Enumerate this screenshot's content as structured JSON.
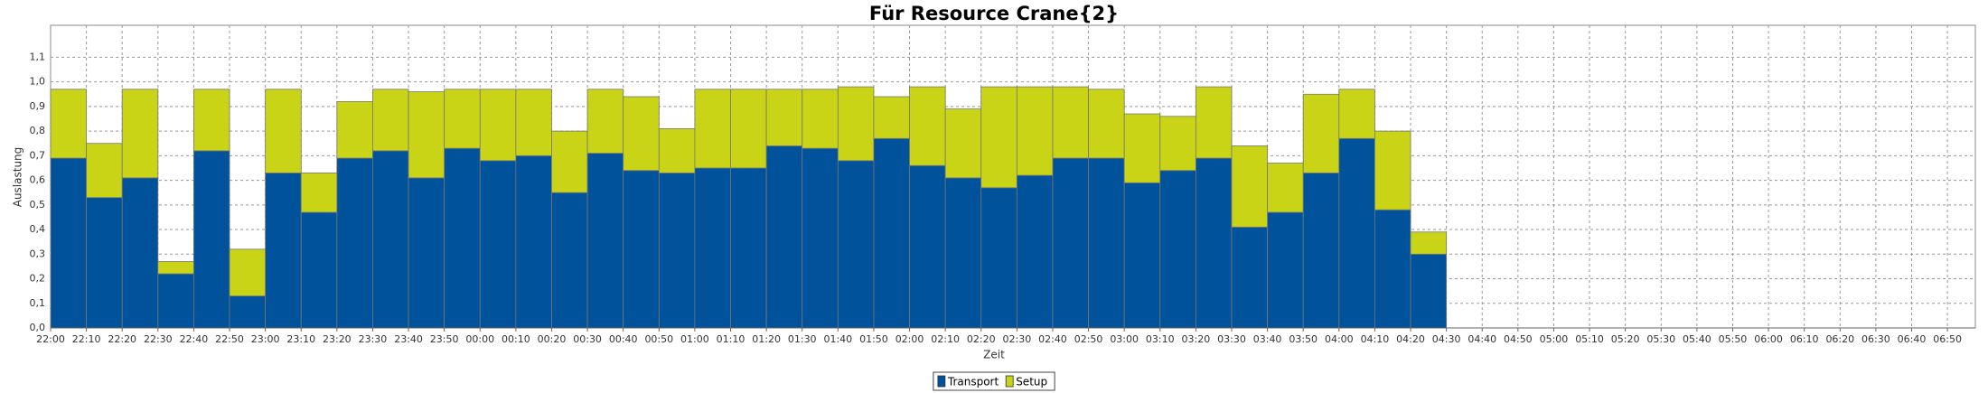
{
  "chart_data": {
    "type": "stacked-bar",
    "title": "Für Resource Crane{2}",
    "x_label": "Zeit",
    "y_label": "Auslastung",
    "categories": [
      "22:00",
      "22:10",
      "22:20",
      "22:30",
      "22:40",
      "22:50",
      "23:00",
      "23:10",
      "23:20",
      "23:30",
      "23:40",
      "23:50",
      "00:00",
      "00:10",
      "00:20",
      "00:30",
      "00:40",
      "00:50",
      "01:00",
      "01:10",
      "01:20",
      "01:30",
      "01:40",
      "01:50",
      "02:00",
      "02:10",
      "02:20",
      "02:30",
      "02:40",
      "02:50",
      "03:00",
      "03:10",
      "03:20",
      "03:30",
      "03:40",
      "03:50",
      "04:00",
      "04:10",
      "04:20",
      "04:30",
      "04:40",
      "04:50",
      "05:00",
      "05:10",
      "05:20",
      "05:30",
      "05:40",
      "05:50",
      "06:00",
      "06:10",
      "06:20",
      "06:30",
      "06:40",
      "06:50"
    ],
    "series": [
      {
        "name": "Transport",
        "color": "#00529b",
        "values": [
          0.69,
          0.53,
          0.61,
          0.22,
          0.72,
          0.13,
          0.63,
          0.47,
          0.69,
          0.72,
          0.61,
          0.73,
          0.68,
          0.7,
          0.55,
          0.71,
          0.64,
          0.63,
          0.65,
          0.65,
          0.74,
          0.73,
          0.68,
          0.77,
          0.66,
          0.61,
          0.57,
          0.62,
          0.69,
          0.69,
          0.59,
          0.64,
          0.69,
          0.41,
          0.47,
          0.63,
          0.77,
          0.48,
          0.3,
          null,
          null,
          null,
          null,
          null,
          null,
          null,
          null,
          null,
          null,
          null,
          null,
          null,
          null,
          null
        ]
      },
      {
        "name": "Setup",
        "color": "#c8d415",
        "values": [
          0.28,
          0.22,
          0.36,
          0.05,
          0.25,
          0.19,
          0.34,
          0.16,
          0.23,
          0.25,
          0.35,
          0.24,
          0.29,
          0.27,
          0.25,
          0.26,
          0.3,
          0.18,
          0.32,
          0.32,
          0.23,
          0.24,
          0.3,
          0.17,
          0.32,
          0.28,
          0.41,
          0.36,
          0.29,
          0.28,
          0.28,
          0.22,
          0.29,
          0.33,
          0.2,
          0.32,
          0.2,
          0.32,
          0.09,
          null,
          null,
          null,
          null,
          null,
          null,
          null,
          null,
          null,
          null,
          null,
          null,
          null,
          null,
          null
        ]
      }
    ],
    "ylim": [
      0,
      1.23
    ],
    "yticks": [
      {
        "value": 0,
        "label": "0,0"
      },
      {
        "value": 0.1,
        "label": "0,1"
      },
      {
        "value": 0.2,
        "label": "0,2"
      },
      {
        "value": 0.3,
        "label": "0,3"
      },
      {
        "value": 0.4,
        "label": "0,4"
      },
      {
        "value": 0.5,
        "label": "0,5"
      },
      {
        "value": 0.6,
        "label": "0,6"
      },
      {
        "value": 0.7,
        "label": "0,7"
      },
      {
        "value": 0.8,
        "label": "0,8"
      },
      {
        "value": 0.9,
        "label": "0,9"
      },
      {
        "value": 1.0,
        "label": "1,0"
      },
      {
        "value": 1.1,
        "label": "1,1"
      }
    ],
    "grid": true,
    "legend": "bottom"
  }
}
